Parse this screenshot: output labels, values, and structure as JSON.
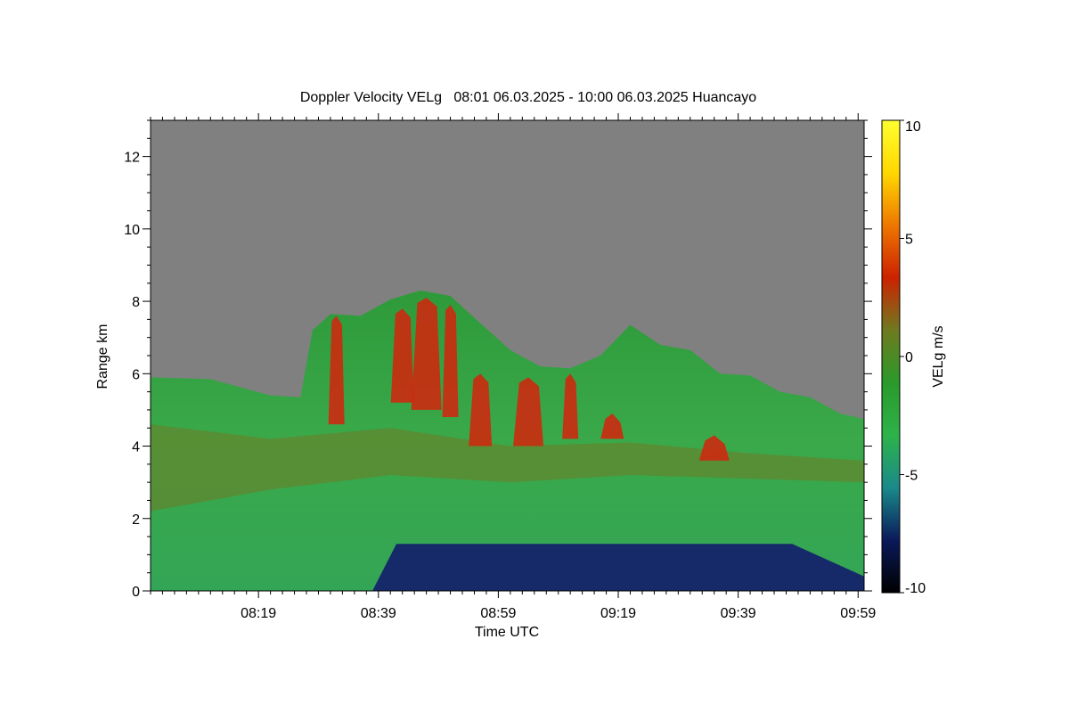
{
  "chart_data": {
    "type": "heatmap",
    "title": "Doppler Velocity VELg   08:01 06.03.2025 - 10:00 06.03.2025 Huancayo",
    "xlabel": "Time UTC",
    "ylabel": "Range km",
    "x_ticks": [
      "08:19",
      "08:39",
      "08:59",
      "09:19",
      "09:39",
      "09:59"
    ],
    "x_tick_minutes": [
      18,
      38,
      58,
      78,
      98,
      118
    ],
    "x_range_minutes": [
      0,
      119
    ],
    "y_ticks": [
      "0",
      "2",
      "4",
      "6",
      "8",
      "10",
      "12"
    ],
    "y_tick_values": [
      0,
      2,
      4,
      6,
      8,
      10,
      12
    ],
    "ylim": [
      0,
      13
    ],
    "colorbar": {
      "label": "VELg m/s",
      "range": [
        -10,
        10
      ],
      "ticks": [
        "10",
        "5",
        "0",
        "-5",
        "-10"
      ],
      "tick_values": [
        10,
        5,
        0,
        -5,
        -10
      ],
      "colors": [
        "#000000",
        "#0a1a5a",
        "#1a8a8a",
        "#2db34a",
        "#2a9a2a",
        "#6e7a20",
        "#cc2200",
        "#ee7700",
        "#ffd800",
        "#ffff30"
      ]
    },
    "no_signal_color": "#808080",
    "cloud_top_km": {
      "minutes": [
        0,
        10,
        20,
        25,
        27,
        30,
        35,
        40,
        45,
        50,
        55,
        60,
        65,
        70,
        75,
        80,
        85,
        90,
        95,
        100,
        105,
        110,
        115,
        119
      ],
      "values": [
        5.9,
        5.7,
        5.4,
        5.2,
        7.2,
        7.5,
        7.6,
        7.9,
        8.3,
        8.0,
        7.4,
        6.5,
        6.2,
        6.0,
        6.5,
        7.2,
        6.8,
        6.5,
        6.0,
        5.8,
        5.5,
        5.2,
        4.9,
        4.6
      ]
    },
    "updraft_cells": [
      {
        "minute": 31,
        "base_km": 4.6,
        "top_km": 7.6
      },
      {
        "minute": 42,
        "base_km": 5.2,
        "top_km": 7.8
      },
      {
        "minute": 46,
        "base_km": 5.0,
        "top_km": 8.1
      },
      {
        "minute": 50,
        "base_km": 4.8,
        "top_km": 7.9
      },
      {
        "minute": 55,
        "base_km": 4.0,
        "top_km": 6.0
      },
      {
        "minute": 63,
        "base_km": 4.0,
        "top_km": 5.9
      },
      {
        "minute": 70,
        "base_km": 4.2,
        "top_km": 6.0
      },
      {
        "minute": 77,
        "base_km": 4.2,
        "top_km": 4.9
      },
      {
        "minute": 94,
        "base_km": 3.6,
        "top_km": 4.3
      }
    ],
    "downdraft_layer": {
      "start_minute": 37,
      "end_minute": 119,
      "top_km": 1.3,
      "min_velocity": -8
    }
  }
}
